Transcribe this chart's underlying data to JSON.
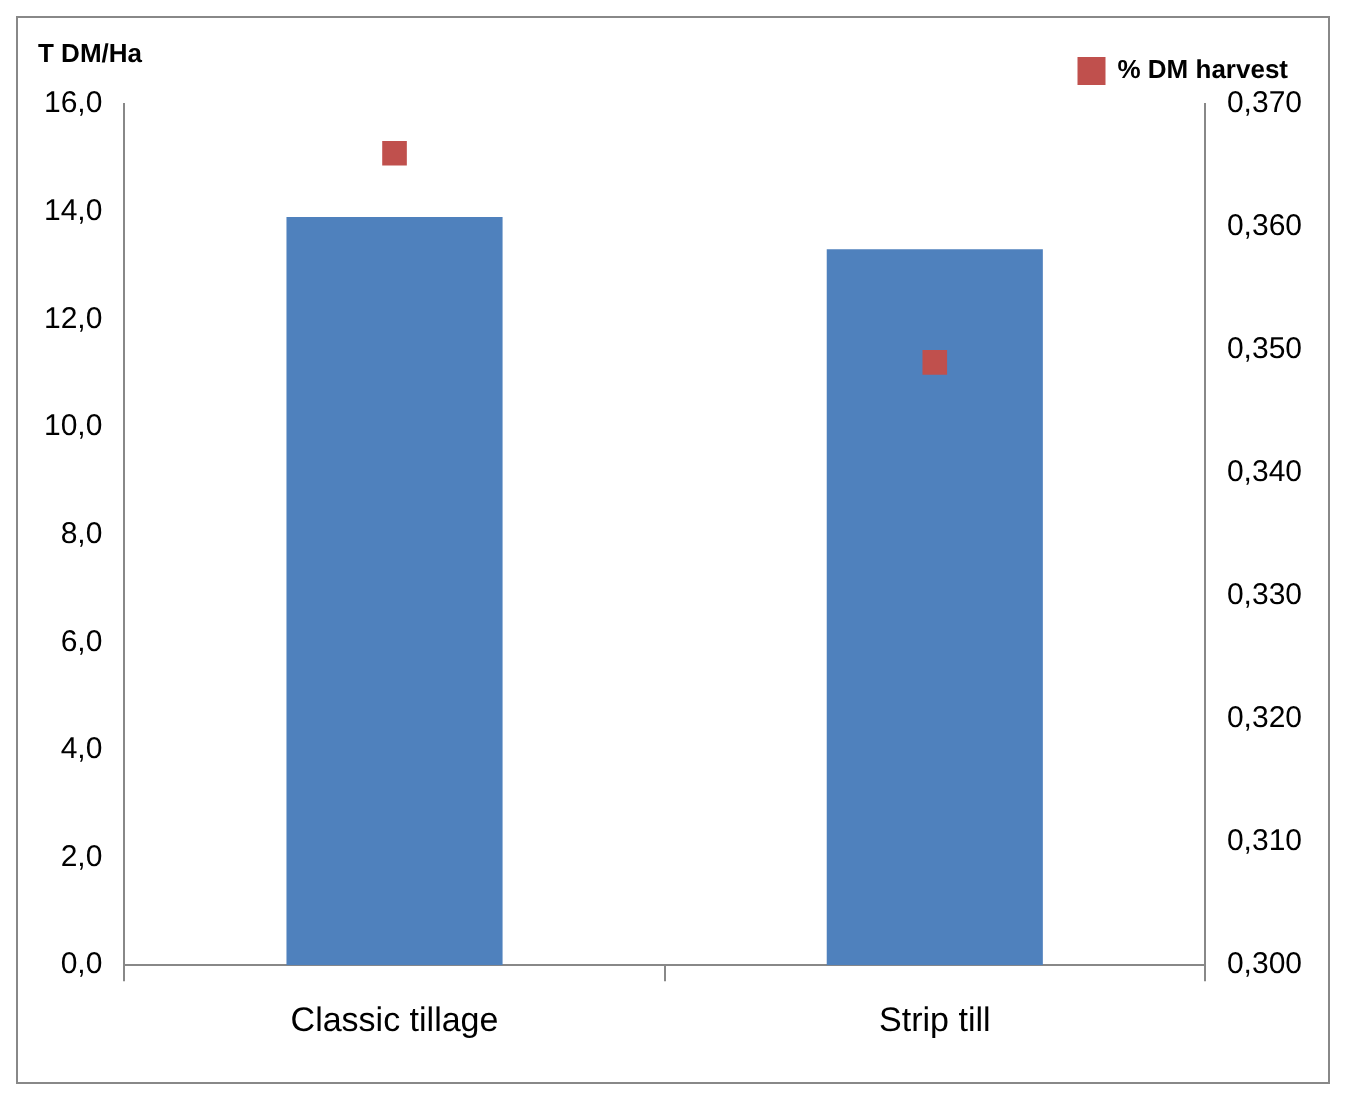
{
  "chart_data": {
    "type": "bar",
    "ylabel": "T DM/Ha",
    "categories": [
      "Classic tillage",
      "Strip till"
    ],
    "series": [
      {
        "color": "#4f81bd",
        "values": [
          13.9,
          13.3
        ]
      },
      {
        "type": "scatter",
        "name": "% DM harvest",
        "color": "#c0504d",
        "axis": "y2",
        "values": [
          0.366,
          0.349
        ]
      }
    ],
    "ylim": [
      0,
      16
    ],
    "yticks": [
      {
        "value": 0,
        "label": "0,0"
      },
      {
        "value": 2,
        "label": "2,0"
      },
      {
        "value": 4,
        "label": "4,0"
      },
      {
        "value": 6,
        "label": "6,0"
      },
      {
        "value": 8,
        "label": "8,0"
      },
      {
        "value": 10,
        "label": "10,0"
      },
      {
        "value": 12,
        "label": "12,0"
      },
      {
        "value": 14,
        "label": "14,0"
      },
      {
        "value": 16,
        "label": "16,0"
      }
    ],
    "y2lim": [
      0.3,
      0.37
    ],
    "y2ticks": [
      {
        "value": 0.3,
        "label": "0,300"
      },
      {
        "value": 0.31,
        "label": "0,310"
      },
      {
        "value": 0.32,
        "label": "0,320"
      },
      {
        "value": 0.33,
        "label": "0,330"
      },
      {
        "value": 0.34,
        "label": "0,340"
      },
      {
        "value": 0.35,
        "label": "0,350"
      },
      {
        "value": 0.36,
        "label": "0,360"
      },
      {
        "value": 0.37,
        "label": "0,370"
      }
    ],
    "grid": false,
    "legend": "top right",
    "marker": "square"
  }
}
